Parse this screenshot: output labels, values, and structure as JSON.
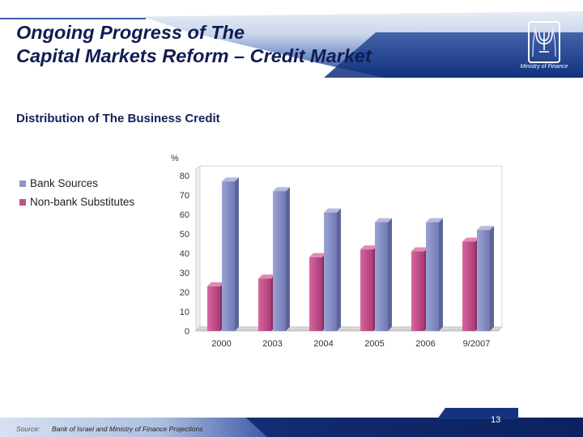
{
  "header": {
    "title_line1": "Ongoing Progress of The",
    "title_line2": "Capital Markets Reform – Credit Market",
    "ministry": "Ministry of Finance",
    "emblem_icon": "menorah-emblem-icon"
  },
  "subtitle": "Distribution of The Business Credit",
  "chart_data": {
    "type": "bar",
    "title": "",
    "ylabel": "%",
    "xlabel": "",
    "ylim": [
      0,
      80
    ],
    "yticks": [
      0,
      10,
      20,
      30,
      40,
      50,
      60,
      70,
      80
    ],
    "categories": [
      "2000",
      "2003",
      "2004",
      "2005",
      "2006",
      "9/2007"
    ],
    "series": [
      {
        "name": "Bank Sources",
        "color": "#8c95c8",
        "values": [
          77,
          72,
          61,
          56,
          56,
          52
        ]
      },
      {
        "name": "Non-bank Substitutes",
        "color": "#c2508a",
        "values": [
          23,
          27,
          38,
          42,
          41,
          46
        ]
      }
    ],
    "legend_position": "left",
    "grid": false
  },
  "footer": {
    "source_label": "Source:",
    "source_text": "Bank of Israel and Ministry of Finance Projections",
    "page_number": "13"
  }
}
